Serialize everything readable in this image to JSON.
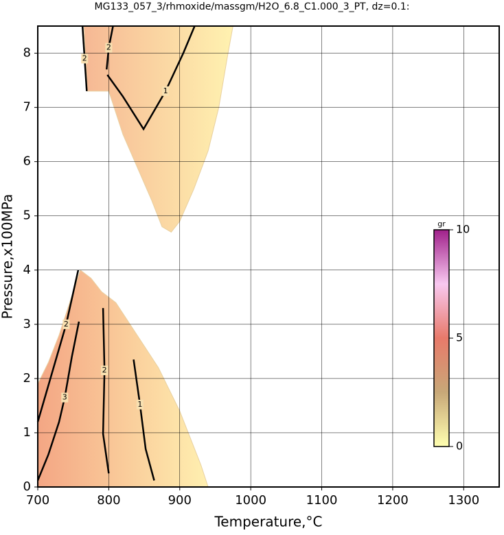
{
  "chart_data": {
    "type": "contour",
    "title": "MG133_057_3/rhmoxide/massgm/H2O_6.8_C1.000_3_PT, dz=0.1:",
    "xlabel": "Temperature,°C",
    "ylabel": "Pressure,x100MPa",
    "xlim": [
      700,
      1350
    ],
    "ylim": [
      0,
      8.5
    ],
    "xticks": [
      700,
      800,
      900,
      1000,
      1100,
      1200,
      1300
    ],
    "yticks": [
      0,
      1,
      2,
      3,
      4,
      5,
      6,
      7,
      8
    ],
    "grid": true,
    "regions": [
      {
        "colors": [
          "#f6b894",
          "#fff2b0"
        ],
        "x": [
          765,
          975,
          968,
          955,
          940,
          920,
          900,
          888,
          875,
          860,
          840,
          820,
          800,
          770
        ],
        "y": [
          8.5,
          8.5,
          8.0,
          7.0,
          6.2,
          5.5,
          4.9,
          4.7,
          4.8,
          5.3,
          5.9,
          6.5,
          7.3,
          7.3
        ]
      },
      {
        "colors": [
          "#f4a684",
          "#fff0b0"
        ],
        "x": [
          700,
          940,
          930,
          915,
          900,
          885,
          870,
          855,
          840,
          825,
          810,
          790,
          775,
          760,
          745,
          730,
          715,
          700
        ],
        "y": [
          0,
          0,
          0.4,
          0.9,
          1.4,
          1.8,
          2.2,
          2.5,
          2.8,
          3.1,
          3.4,
          3.6,
          3.85,
          4.0,
          3.4,
          2.8,
          2.3,
          1.9
        ]
      }
    ],
    "contours": [
      {
        "level": 2,
        "x": [
          763,
          766,
          769
        ],
        "y": [
          8.5,
          7.9,
          7.3
        ]
      },
      {
        "level": 2,
        "x": [
          806,
          800,
          797
        ],
        "y": [
          8.5,
          8.1,
          7.7
        ]
      },
      {
        "level": 1,
        "x": [
          798,
          820,
          849,
          880,
          905,
          921
        ],
        "y": [
          7.6,
          7.2,
          6.6,
          7.3,
          8.0,
          8.5
        ]
      },
      {
        "level": 3,
        "x": [
          700,
          715,
          730,
          738,
          748,
          758
        ],
        "y": [
          0.12,
          0.6,
          1.2,
          1.65,
          2.4,
          3.05
        ]
      },
      {
        "level": 2,
        "x": [
          800,
          792,
          794,
          792
        ],
        "y": [
          0.25,
          0.98,
          2.15,
          3.3
        ]
      },
      {
        "level": 1,
        "x": [
          864,
          852,
          844,
          835
        ],
        "y": [
          0.12,
          0.7,
          1.52,
          2.35
        ]
      },
      {
        "level": 2,
        "x": [
          700,
          720,
          740,
          757
        ],
        "y": [
          1.2,
          2.1,
          3.0,
          4.0
        ]
      }
    ],
    "colorbar": {
      "label": "gr",
      "lim": [
        0,
        10
      ],
      "ticks": [
        0,
        5,
        10
      ],
      "colors": [
        "#ffffb0",
        "#c8a878",
        "#e87a6a",
        "#f8c8f0",
        "#a0208a"
      ]
    }
  }
}
